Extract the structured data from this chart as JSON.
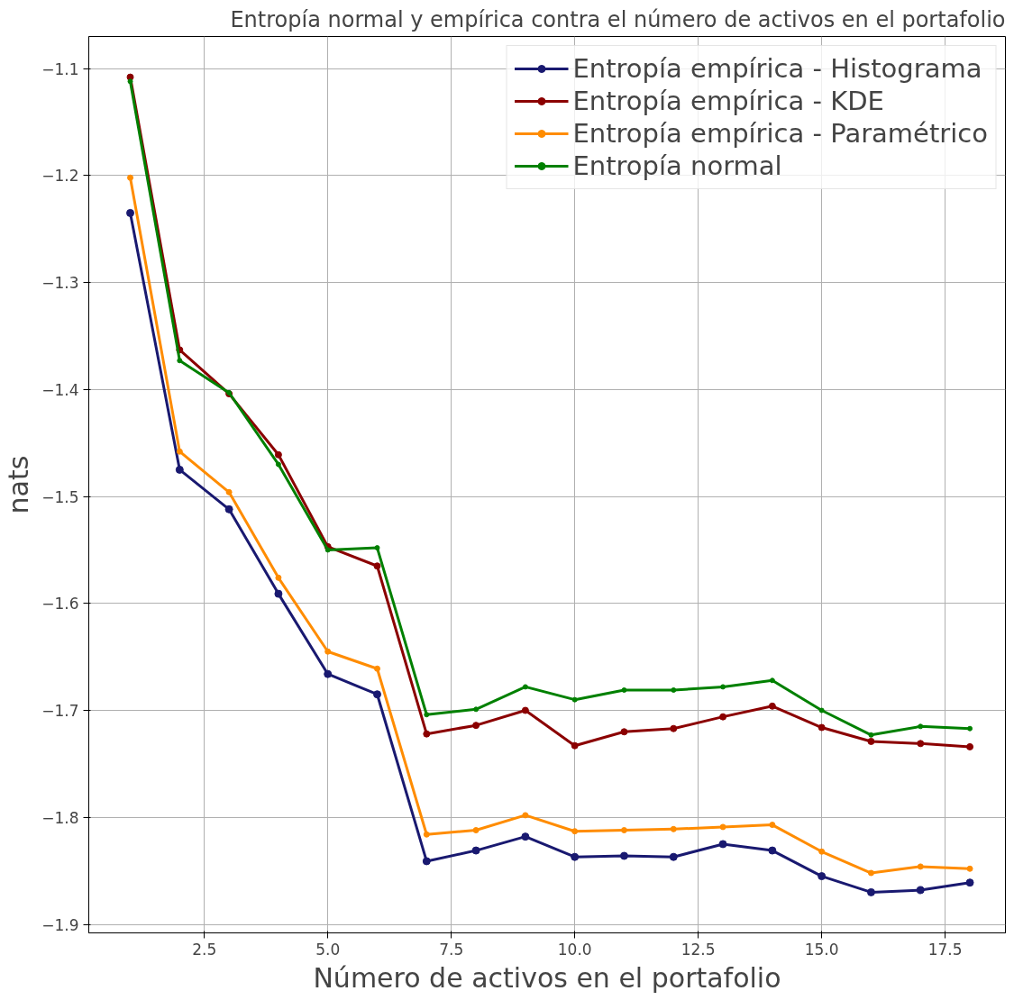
{
  "chart_data": {
    "type": "line",
    "title": "Entropía normal y empírica contra el número de activos en el portafolio",
    "xlabel": "Número de activos en el portafolio",
    "ylabel": "nats",
    "x": [
      1,
      2,
      3,
      4,
      5,
      6,
      7,
      8,
      9,
      10,
      11,
      12,
      13,
      14,
      15,
      16,
      17,
      18
    ],
    "series": [
      {
        "name": "Entropía empírica - Histograma",
        "color": "#191970",
        "values": [
          -1.235,
          -1.475,
          -1.512,
          -1.591,
          -1.666,
          -1.685,
          -1.841,
          -1.831,
          -1.818,
          -1.837,
          -1.836,
          -1.837,
          -1.825,
          -1.831,
          -1.855,
          -1.87,
          -1.868,
          -1.861
        ]
      },
      {
        "name": "Entropía empírica - KDE",
        "color": "#8b0000",
        "values": [
          -1.108,
          -1.363,
          -1.404,
          -1.461,
          -1.547,
          -1.565,
          -1.722,
          -1.714,
          -1.7,
          -1.733,
          -1.72,
          -1.717,
          -1.706,
          -1.696,
          -1.716,
          -1.729,
          -1.731,
          -1.734
        ]
      },
      {
        "name": "Entropía empírica - Paramétrico",
        "color": "#ff8c00",
        "values": [
          -1.202,
          -1.458,
          -1.496,
          -1.576,
          -1.645,
          -1.661,
          -1.816,
          -1.812,
          -1.798,
          -1.813,
          -1.812,
          -1.811,
          -1.809,
          -1.807,
          -1.832,
          -1.852,
          -1.846,
          -1.848
        ]
      },
      {
        "name": "Entropía normal",
        "color": "#008000",
        "values": [
          -1.112,
          -1.373,
          -1.403,
          -1.47,
          -1.55,
          -1.548,
          -1.704,
          -1.699,
          -1.678,
          -1.69,
          -1.681,
          -1.681,
          -1.678,
          -1.672,
          -1.7,
          -1.723,
          -1.715,
          -1.717
        ]
      }
    ],
    "xlim": [
      0.16,
      18.72
    ],
    "ylim": [
      -1.908,
      -1.07
    ],
    "xticks": [
      {
        "value": 2.5,
        "label": "2.5"
      },
      {
        "value": 5,
        "label": "5.0"
      },
      {
        "value": 7.5,
        "label": "7.5"
      },
      {
        "value": 10,
        "label": "10.0"
      },
      {
        "value": 12.5,
        "label": "12.5"
      },
      {
        "value": 15,
        "label": "15.0"
      },
      {
        "value": 17.5,
        "label": "17.5"
      }
    ],
    "yticks": [
      {
        "value": -1.9,
        "label": "−1.9"
      },
      {
        "value": -1.8,
        "label": "−1.8"
      },
      {
        "value": -1.7,
        "label": "−1.7"
      },
      {
        "value": -1.6,
        "label": "−1.6"
      },
      {
        "value": -1.5,
        "label": "−1.5"
      },
      {
        "value": -1.4,
        "label": "−1.4"
      },
      {
        "value": -1.3,
        "label": "−1.3"
      },
      {
        "value": -1.2,
        "label": "−1.2"
      },
      {
        "value": -1.1,
        "label": "−1.1"
      }
    ],
    "grid": true,
    "legend": "top right",
    "marker": "circle",
    "line_style": "solid"
  }
}
